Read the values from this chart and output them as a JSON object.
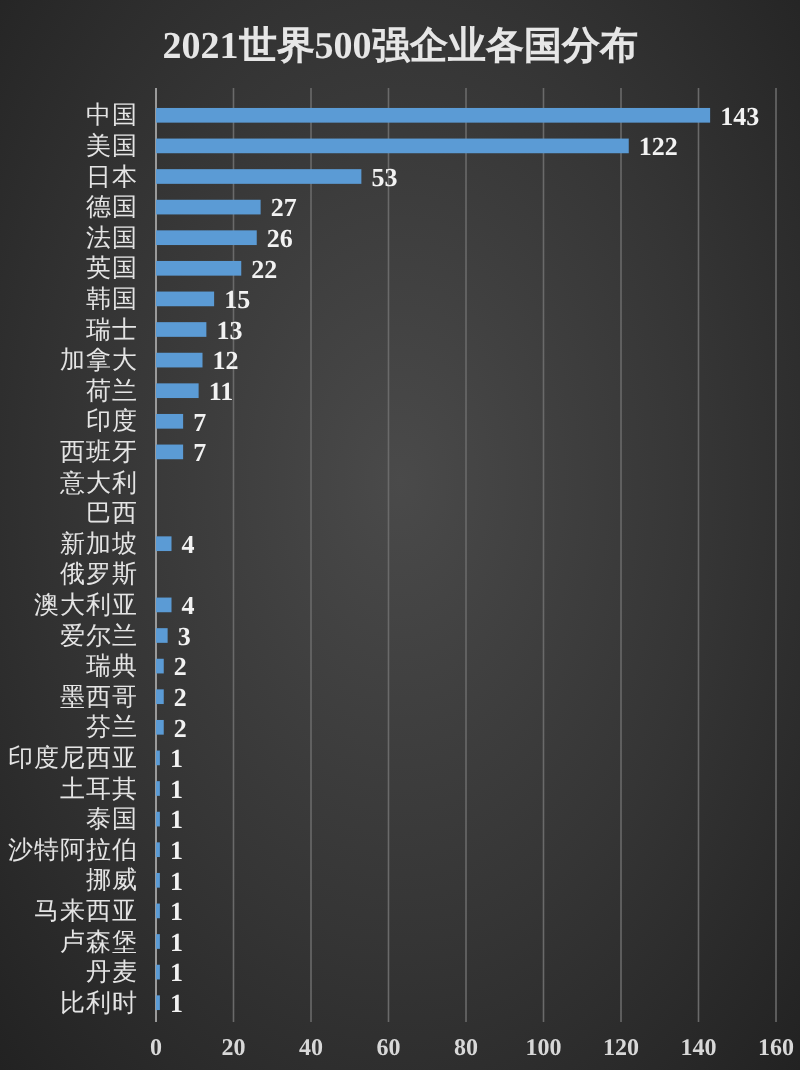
{
  "chart_data": {
    "type": "bar",
    "orientation": "horizontal",
    "title": "2021世界500强企业各国分布",
    "categories": [
      "中国",
      "美国",
      "日本",
      "德国",
      "法国",
      "英国",
      "韩国",
      "瑞士",
      "加拿大",
      "荷兰",
      "印度",
      "西班牙",
      "意大利",
      "巴西",
      "新加坡",
      "俄罗斯",
      "澳大利亚",
      "爱尔兰",
      "瑞典",
      "墨西哥",
      "芬兰",
      "印度尼西亚",
      "土耳其",
      "泰国",
      "沙特阿拉伯",
      "挪威",
      "马来西亚",
      "卢森堡",
      "丹麦",
      "比利时"
    ],
    "values": [
      143,
      122,
      53,
      27,
      26,
      22,
      15,
      13,
      12,
      11,
      7,
      7,
      null,
      null,
      4,
      null,
      4,
      3,
      2,
      2,
      2,
      1,
      1,
      1,
      1,
      1,
      1,
      1,
      1,
      1
    ],
    "color": "#5b9bd5",
    "xlim": [
      0,
      160
    ],
    "xticks": [
      0,
      20,
      40,
      60,
      80,
      100,
      120,
      140,
      160
    ],
    "grid": "x",
    "data_labels": true
  }
}
